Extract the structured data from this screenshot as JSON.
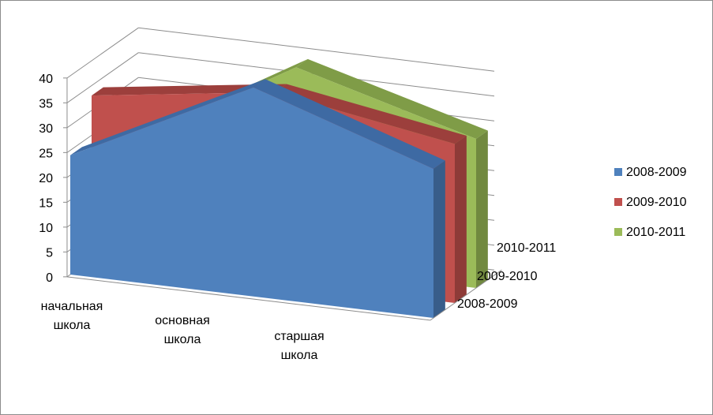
{
  "chart_data": {
    "type": "area",
    "title": "",
    "xlabel": "",
    "ylabel": "",
    "categories": [
      "начальная школа",
      "основная школа",
      "старшая школа"
    ],
    "category_lines": [
      [
        "начальная",
        "школа"
      ],
      [
        "основная",
        "школа"
      ],
      [
        "старшая",
        "школа"
      ]
    ],
    "y_ticks": [
      "0",
      "5",
      "10",
      "15",
      "20",
      "25",
      "30",
      "35",
      "40"
    ],
    "ylim": [
      0,
      40
    ],
    "depth_labels": [
      "2008-2009",
      "2009-2010",
      "2010-2011"
    ],
    "series": [
      {
        "name": "2008-2009",
        "values": [
          24,
          41,
          30
        ],
        "color": "#4f81bd",
        "side_color": "#385d8a",
        "top_color": "#3e6aa3"
      },
      {
        "name": "2009-2010",
        "values": [
          33,
          37,
          32
        ],
        "color": "#c0504d",
        "side_color": "#8e3b38",
        "top_color": "#9c3f3c"
      },
      {
        "name": "2010-2011",
        "values": [
          19,
          39,
          30
        ],
        "color": "#9bbb59",
        "side_color": "#71893f",
        "top_color": "#7f9c47"
      }
    ],
    "legend_position": "right",
    "grid": true
  }
}
